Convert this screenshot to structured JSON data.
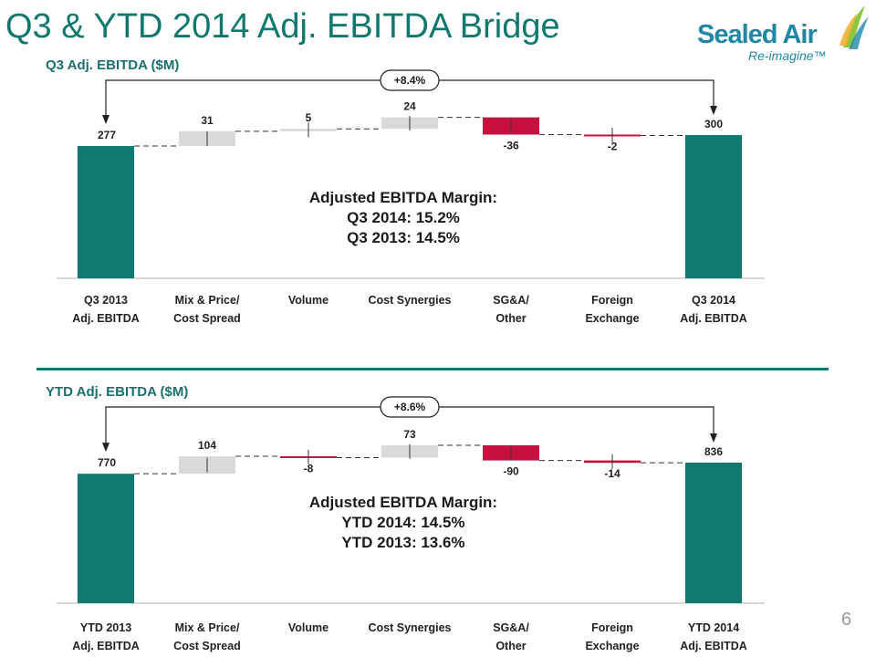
{
  "slide": {
    "title": "Q3 & YTD 2014 Adj. EBITDA Bridge",
    "page_number": "6"
  },
  "logo": {
    "name": "Sealed Air",
    "tagline": "Re-imagine™"
  },
  "colors": {
    "total": "#0f7b70",
    "increase": "#d9d9d9",
    "decrease": "#c8103e",
    "title": "#117870",
    "brand": "#1f87a6"
  },
  "chart_data": [
    {
      "type": "bar",
      "subtype": "waterfall",
      "title": "Q3 Adj. EBITDA ($M)",
      "categories": [
        [
          "Q3 2013",
          "Adj. EBITDA"
        ],
        [
          "Mix & Price/",
          "Cost Spread"
        ],
        [
          "Volume"
        ],
        [
          "Cost Synergies"
        ],
        [
          "SG&A/",
          "Other"
        ],
        [
          "Foreign",
          "Exchange"
        ],
        [
          "Q3 2014",
          "Adj. EBITDA"
        ]
      ],
      "values": [
        277,
        31,
        5,
        24,
        -36,
        -2,
        300
      ],
      "labels": [
        "277",
        "31",
        "5",
        "24",
        "-36",
        "-2",
        "300"
      ],
      "kinds": [
        "total",
        "delta",
        "delta",
        "delta",
        "delta",
        "delta",
        "total"
      ],
      "growth": "+8.4%",
      "annotation": [
        "Adjusted EBITDA Margin:",
        "Q3 2014: 15.2%",
        "Q3 2013: 14.5%"
      ]
    },
    {
      "type": "bar",
      "subtype": "waterfall",
      "title": "YTD Adj. EBITDA ($M)",
      "categories": [
        [
          "YTD 2013",
          "Adj. EBITDA"
        ],
        [
          "Mix & Price/",
          "Cost Spread"
        ],
        [
          "Volume"
        ],
        [
          "Cost Synergies"
        ],
        [
          "SG&A/",
          "Other"
        ],
        [
          "Foreign",
          "Exchange"
        ],
        [
          "YTD 2014",
          "Adj. EBITDA"
        ]
      ],
      "values": [
        770,
        104,
        -8,
        73,
        -90,
        -14,
        836
      ],
      "labels": [
        "770",
        "104",
        "-8",
        "73",
        "-90",
        "-14",
        "836"
      ],
      "kinds": [
        "total",
        "delta",
        "delta",
        "delta",
        "delta",
        "delta",
        "total"
      ],
      "growth": "+8.6%",
      "annotation": [
        "Adjusted EBITDA Margin:",
        "YTD 2014: 14.5%",
        "YTD 2013: 13.6%"
      ]
    }
  ]
}
